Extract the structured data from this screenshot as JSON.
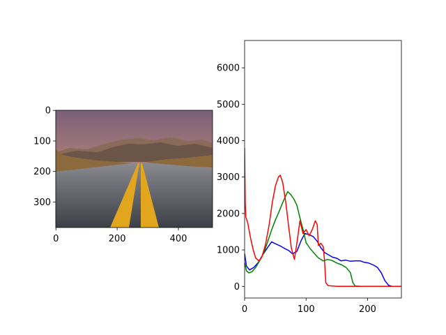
{
  "left_panel": {
    "image_extent": {
      "width": 512,
      "height": 384
    },
    "xticks": [
      0,
      200,
      400
    ],
    "yticks": [
      0,
      100,
      200,
      300
    ],
    "colors": {
      "sky_top": "#7a5f78",
      "sky_mid": "#b9877a",
      "sky_low": "#d9a878",
      "mountain": "#6b5448",
      "mountain_far": "#8a6a58",
      "grass": "#8c6a3e",
      "road_near": "#3d4048",
      "road_far": "#8a8a90",
      "line_yellow": "#e2a51e"
    }
  },
  "chart_data": {
    "type": "line",
    "xlim": [
      0,
      255
    ],
    "ylim": [
      -320,
      6750
    ],
    "xticks": [
      0,
      100,
      200
    ],
    "yticks": [
      0,
      1000,
      2000,
      3000,
      4000,
      5000,
      6000
    ],
    "grid": false,
    "series": [
      {
        "color": "#0000ff",
        "points": [
          [
            0,
            900
          ],
          [
            3,
            560
          ],
          [
            8,
            450
          ],
          [
            15,
            520
          ],
          [
            22,
            650
          ],
          [
            30,
            880
          ],
          [
            38,
            1080
          ],
          [
            44,
            1220
          ],
          [
            50,
            1170
          ],
          [
            58,
            1110
          ],
          [
            65,
            1040
          ],
          [
            72,
            980
          ],
          [
            78,
            890
          ],
          [
            85,
            960
          ],
          [
            92,
            1260
          ],
          [
            98,
            1450
          ],
          [
            105,
            1420
          ],
          [
            112,
            1360
          ],
          [
            118,
            1240
          ],
          [
            124,
            1060
          ],
          [
            130,
            930
          ],
          [
            137,
            860
          ],
          [
            143,
            800
          ],
          [
            150,
            770
          ],
          [
            157,
            700
          ],
          [
            164,
            720
          ],
          [
            172,
            690
          ],
          [
            180,
            700
          ],
          [
            188,
            700
          ],
          [
            195,
            660
          ],
          [
            202,
            640
          ],
          [
            210,
            580
          ],
          [
            216,
            520
          ],
          [
            222,
            380
          ],
          [
            228,
            160
          ],
          [
            234,
            30
          ],
          [
            240,
            0
          ],
          [
            255,
            0
          ]
        ]
      },
      {
        "color": "#008000",
        "points": [
          [
            0,
            650
          ],
          [
            3,
            430
          ],
          [
            7,
            370
          ],
          [
            12,
            400
          ],
          [
            18,
            520
          ],
          [
            25,
            720
          ],
          [
            32,
            950
          ],
          [
            38,
            1250
          ],
          [
            44,
            1550
          ],
          [
            50,
            1820
          ],
          [
            56,
            2050
          ],
          [
            62,
            2300
          ],
          [
            66,
            2450
          ],
          [
            70,
            2600
          ],
          [
            75,
            2520
          ],
          [
            80,
            2400
          ],
          [
            85,
            2230
          ],
          [
            90,
            1880
          ],
          [
            96,
            1500
          ],
          [
            100,
            1200
          ],
          [
            106,
            1050
          ],
          [
            112,
            930
          ],
          [
            120,
            780
          ],
          [
            128,
            700
          ],
          [
            135,
            740
          ],
          [
            142,
            710
          ],
          [
            150,
            640
          ],
          [
            158,
            590
          ],
          [
            165,
            520
          ],
          [
            172,
            380
          ],
          [
            176,
            100
          ],
          [
            180,
            10
          ],
          [
            190,
            0
          ],
          [
            255,
            0
          ]
        ]
      },
      {
        "color": "#ff0000",
        "points": [
          [
            0,
            3800
          ],
          [
            1,
            2300
          ],
          [
            2,
            1900
          ],
          [
            5,
            1750
          ],
          [
            10,
            1300
          ],
          [
            14,
            1000
          ],
          [
            18,
            780
          ],
          [
            23,
            700
          ],
          [
            28,
            800
          ],
          [
            34,
            1150
          ],
          [
            40,
            1700
          ],
          [
            45,
            2300
          ],
          [
            50,
            2750
          ],
          [
            55,
            3000
          ],
          [
            58,
            3050
          ],
          [
            62,
            2850
          ],
          [
            67,
            2300
          ],
          [
            72,
            1600
          ],
          [
            76,
            1050
          ],
          [
            81,
            740
          ],
          [
            86,
            1300
          ],
          [
            90,
            1800
          ],
          [
            95,
            1450
          ],
          [
            100,
            1560
          ],
          [
            105,
            1390
          ],
          [
            110,
            1560
          ],
          [
            115,
            1800
          ],
          [
            118,
            1700
          ],
          [
            120,
            1120
          ],
          [
            124,
            1180
          ],
          [
            128,
            1090
          ],
          [
            130,
            700
          ],
          [
            132,
            100
          ],
          [
            136,
            20
          ],
          [
            150,
            0
          ],
          [
            200,
            0
          ],
          [
            255,
            0
          ]
        ]
      }
    ]
  }
}
